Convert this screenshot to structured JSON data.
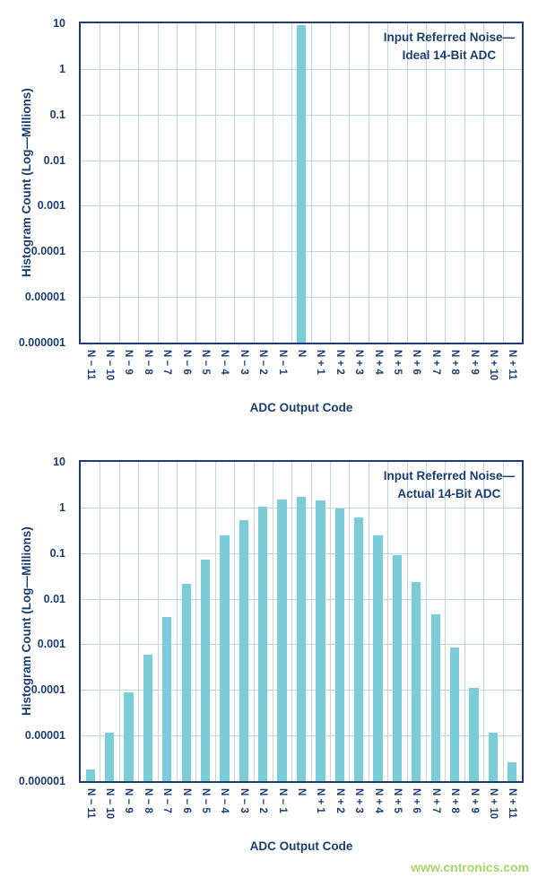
{
  "watermark": {
    "text": "www.cntronics.com",
    "color": "#a8d468"
  },
  "colors": {
    "bar": "#7bccd9",
    "grid": "#bdd7e7",
    "text": "#1a3e73",
    "axis": "#1a3e73"
  },
  "chart_data": [
    {
      "type": "bar",
      "yscale": "log",
      "grid": true,
      "title_line1": "Input Referred Noise—",
      "title_line2": "Ideal 14-Bit ADC",
      "xlabel": "ADC Output Code",
      "ylabel": "Histogram Count (Log—Millions)",
      "ylim": [
        1e-06,
        10
      ],
      "ytick_labels": [
        "10",
        "1",
        "0.1",
        "0.01",
        "0.001",
        "0.0001",
        "0.00001",
        "0.000001"
      ],
      "categories": [
        "N − 11",
        "N − 10",
        "N − 9",
        "N − 8",
        "N − 7",
        "N − 6",
        "N − 5",
        "N − 4",
        "N − 3",
        "N − 2",
        "N − 1",
        "N",
        "N + 1",
        "N + 2",
        "N + 3",
        "N + 4",
        "N + 5",
        "N + 6",
        "N + 7",
        "N + 8",
        "N + 9",
        "N + 10",
        "N + 11"
      ],
      "values": [
        0,
        0,
        0,
        0,
        0,
        0,
        0,
        0,
        0,
        0,
        0,
        9,
        0,
        0,
        0,
        0,
        0,
        0,
        0,
        0,
        0,
        0,
        0
      ]
    },
    {
      "type": "bar",
      "yscale": "log",
      "grid": true,
      "title_line1": "Input Referred Noise—",
      "title_line2": "Actual 14-Bit ADC",
      "xlabel": "ADC Output Code",
      "ylabel": "Histogram Count (Log—Millions)",
      "ylim": [
        1e-06,
        10
      ],
      "ytick_labels": [
        "10",
        "1",
        "0.1",
        "0.01",
        "0.001",
        "0.0001",
        "0.00001",
        "0.000001"
      ],
      "categories": [
        "N − 11",
        "N − 10",
        "N − 9",
        "N − 8",
        "N − 7",
        "N − 6",
        "N − 5",
        "N − 4",
        "N − 3",
        "N − 2",
        "N − 1",
        "N",
        "N + 1",
        "N + 2",
        "N + 3",
        "N + 4",
        "N + 5",
        "N + 6",
        "N + 7",
        "N + 8",
        "N + 9",
        "N + 10",
        "N + 11"
      ],
      "values": [
        1.8e-06,
        1.15e-05,
        9e-05,
        0.0006,
        0.004,
        0.021,
        0.073,
        0.24,
        0.52,
        1.05,
        1.5,
        1.7,
        1.45,
        0.95,
        0.6,
        0.24,
        0.09,
        0.023,
        0.0046,
        0.00085,
        0.00011,
        1.15e-05,
        2.6e-06
      ]
    }
  ]
}
